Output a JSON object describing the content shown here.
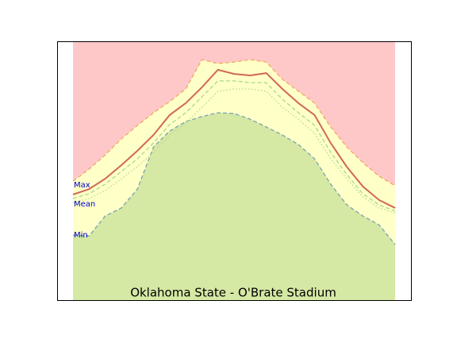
{
  "chart_data": {
    "type": "area",
    "title": "Oklahoma State - O'Brate Stadium",
    "categories": [
      null,
      null,
      null,
      null,
      null,
      null,
      null,
      null,
      null,
      null,
      null,
      null,
      null,
      null,
      null,
      null,
      null,
      null,
      null,
      null,
      null
    ],
    "ylim": [
      0,
      100
    ],
    "background_color": "#ffc8c8",
    "series": [
      {
        "name": "Max",
        "color": "#f0a868",
        "fill": "#ffffc8",
        "style": "dashed",
        "values": [
          46.0,
          50.6,
          56.1,
          62.3,
          67.5,
          72.4,
          76.7,
          81.6,
          92.9,
          91.4,
          92.0,
          92.9,
          92.0,
          85.3,
          80.7,
          76.1,
          66.9,
          59.2,
          53.1,
          47.9,
          44.2
        ]
      },
      {
        "name": "Min",
        "color": "#7aa4b0",
        "fill": "#d5e8a4",
        "style": "dashed",
        "values": [
          25.2,
          24.8,
          32.5,
          35.6,
          42.9,
          59.2,
          65.3,
          69.0,
          70.9,
          72.4,
          72.1,
          69.9,
          66.9,
          63.8,
          60.1,
          54.6,
          44.8,
          36.8,
          32.5,
          29.1,
          21.5
        ]
      },
      {
        "color": "#a8d890",
        "style": "dashed",
        "values": [
          39.3,
          41.1,
          44.8,
          49.7,
          54.6,
          60.7,
          67.8,
          72.4,
          78.5,
          84.7,
          84.7,
          84.0,
          84.0,
          77.6,
          72.4,
          67.5,
          57.1,
          48.5,
          41.1,
          36.8,
          34.4
        ]
      },
      {
        "color": "#b8d890",
        "style": "dotted",
        "values": [
          37.7,
          39.3,
          42.3,
          46.9,
          51.5,
          57.1,
          63.8,
          68.4,
          74.5,
          80.7,
          81.6,
          81.6,
          80.7,
          74.5,
          69.9,
          64.4,
          54.6,
          46.9,
          39.9,
          35.6,
          33.7
        ]
      },
      {
        "name": "Mean",
        "color": "#d06858",
        "style": "solid",
        "values": [
          40.8,
          42.9,
          46.9,
          52.1,
          57.7,
          63.8,
          71.5,
          76.1,
          82.2,
          89.0,
          87.4,
          86.8,
          87.7,
          81.6,
          76.1,
          71.5,
          60.7,
          51.5,
          43.9,
          38.7,
          35.6
        ]
      }
    ]
  }
}
